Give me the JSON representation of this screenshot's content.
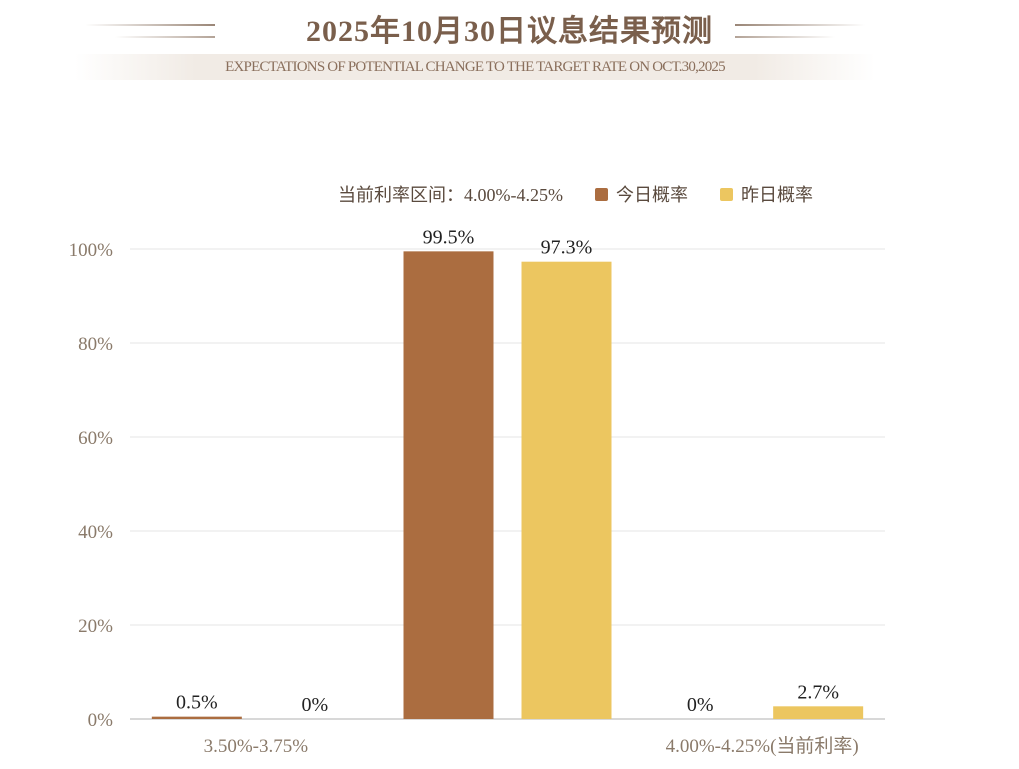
{
  "header": {
    "title": "2025年10月30日议息结果预测",
    "subtitle": "EXPECTATIONS OF POTENTIAL CHANGE TO THE TARGET RATE ON OCT.30,2025"
  },
  "legend": {
    "current_rate_label": "当前利率区间：4.00%-4.25%",
    "today": "今日概率",
    "yesterday": "昨日概率"
  },
  "colors": {
    "today": "#ab6d40",
    "yesterday": "#ecc660",
    "axis_text": "#8a7a6a",
    "grid": "#e4e4e4"
  },
  "chart_data": {
    "type": "bar",
    "categories": [
      "3.50%-3.75%",
      "",
      "4.00%-4.25%(当前利率)"
    ],
    "series": [
      {
        "name": "今日概率",
        "values": [
          0.5,
          99.5,
          0
        ]
      },
      {
        "name": "昨日概率",
        "values": [
          0,
          97.3,
          2.7
        ]
      }
    ],
    "data_labels": [
      [
        "0.5%",
        "99.5%",
        "0%"
      ],
      [
        "0%",
        "97.3%",
        "2.7%"
      ]
    ],
    "yticks": [
      "0%",
      "20%",
      "40%",
      "60%",
      "80%",
      "100%"
    ],
    "ylim": [
      0,
      100
    ],
    "grid": true,
    "legend": "top-right"
  }
}
